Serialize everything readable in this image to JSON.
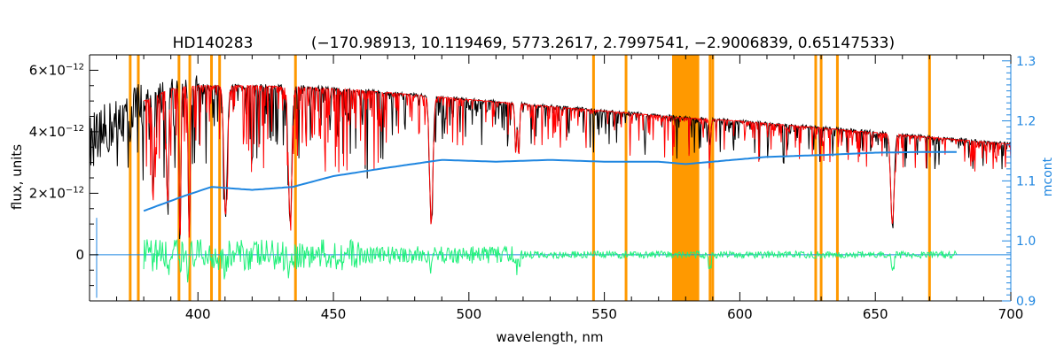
{
  "chart_data": {
    "type": "line",
    "title": "HD140283",
    "subtitle": "(−170.98913, 10.119469, 5773.2617, 2.7997541, −2.9006839, 0.65147533)",
    "xlabel": "wavelength, nm",
    "ylabel": "flux, units",
    "y2label": "mcont",
    "xlim": [
      360,
      700
    ],
    "ylim": [
      -1.5e-12,
      6.5e-12
    ],
    "y2lim": [
      0.9,
      1.31
    ],
    "x_ticks": [
      {
        "value": 400,
        "label": "400"
      },
      {
        "value": 450,
        "label": "450"
      },
      {
        "value": 500,
        "label": "500"
      },
      {
        "value": 550,
        "label": "550"
      },
      {
        "value": 600,
        "label": "600"
      },
      {
        "value": 650,
        "label": "650"
      },
      {
        "value": 700,
        "label": "700"
      }
    ],
    "y_ticks": [
      {
        "value": 0,
        "base": "0",
        "exp": ""
      },
      {
        "value": 2e-12,
        "base": "2×10",
        "exp": "−12"
      },
      {
        "value": 4e-12,
        "base": "4×10",
        "exp": "−12"
      },
      {
        "value": 6e-12,
        "base": "6×10",
        "exp": "−12"
      }
    ],
    "y2_ticks": [
      {
        "value": 0.9,
        "label": "0.9"
      },
      {
        "value": 1.0,
        "label": "1.0"
      },
      {
        "value": 1.1,
        "label": "1.1"
      },
      {
        "value": 1.2,
        "label": "1.2"
      },
      {
        "value": 1.3,
        "label": "1.3"
      }
    ],
    "masked_lines_nm": [
      375,
      378,
      393,
      397,
      405,
      408,
      436,
      546,
      558,
      589,
      590,
      628,
      630,
      636,
      670
    ],
    "masked_bands_nm": [
      [
        575,
        585
      ]
    ],
    "colors": {
      "observed": "#000000",
      "model": "#ff0000",
      "continuum": "#1f86e0",
      "residuals": "#1ff07a",
      "mask": "#ff9900"
    },
    "series": [
      {
        "name": "observed",
        "role": "observed spectrum",
        "x": [
          360,
          380,
          390,
          400,
          420,
          440,
          460,
          480,
          500,
          520,
          540,
          560,
          580,
          600,
          620,
          640,
          660,
          680,
          700
        ],
        "y": [
          3.7e-12,
          5e-12,
          5.4e-12,
          5.5e-12,
          5.5e-12,
          5.45e-12,
          5.35e-12,
          5.2e-12,
          5.05e-12,
          4.9e-12,
          4.75e-12,
          4.6e-12,
          4.45e-12,
          4.35e-12,
          4.2e-12,
          4.05e-12,
          3.9e-12,
          3.75e-12,
          3.6e-12
        ]
      },
      {
        "name": "model",
        "role": "synthetic fit",
        "x_range": [
          380,
          700
        ]
      },
      {
        "name": "mcont",
        "role": "continuum correction (right axis)",
        "x": [
          380,
          395,
          405,
          420,
          435,
          450,
          470,
          490,
          510,
          530,
          550,
          570,
          580,
          595,
          610,
          630,
          650,
          665,
          680
        ],
        "y": [
          1.05,
          1.075,
          1.09,
          1.085,
          1.09,
          1.108,
          1.122,
          1.135,
          1.132,
          1.135,
          1.132,
          1.132,
          1.128,
          1.134,
          1.14,
          1.143,
          1.147,
          1.148,
          1.148
        ]
      },
      {
        "name": "residuals",
        "role": "observed − model",
        "x_range": [
          380,
          680
        ],
        "y": 0
      }
    ],
    "absorption_lines_nm": [
      {
        "x": 383.5,
        "min": 1.8e-12
      },
      {
        "x": 388.9,
        "min": 1.5e-12
      },
      {
        "x": 393.4,
        "min": 4e-13
      },
      {
        "x": 396.8,
        "min": 5e-13
      },
      {
        "x": 410.2,
        "min": 1.3e-12
      },
      {
        "x": 434.0,
        "min": 1.2e-12
      },
      {
        "x": 486.1,
        "min": 1.1e-12
      },
      {
        "x": 517.3,
        "min": 3.3e-12
      },
      {
        "x": 518.4,
        "min": 3.2e-12
      },
      {
        "x": 589.0,
        "min": 3.6e-12
      },
      {
        "x": 656.3,
        "min": 1e-12
      }
    ]
  }
}
